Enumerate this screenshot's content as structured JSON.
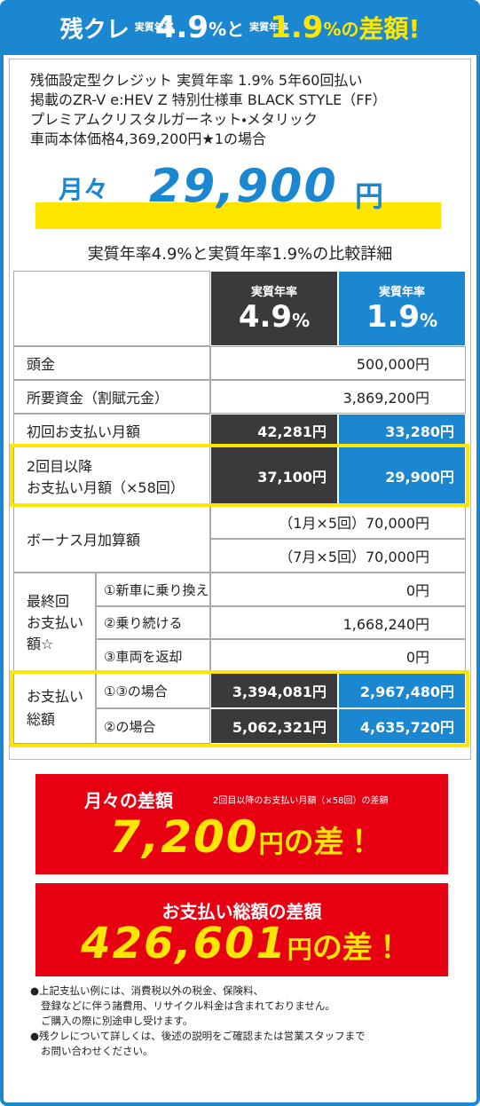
{
  "header": {
    "brand": "残クレ",
    "rate_label": "実質年率",
    "rate_a": "4.9",
    "rate_a_suffix": "%と",
    "rate_b": "1.9",
    "rate_b_suffix": "%の",
    "tail": "差額!"
  },
  "intro": {
    "lines": [
      "残価設定型クレジット 実質年率 1.9% 5年60回払い",
      "掲載のZR-V e:HEV Z 特別仕様車 BLACK STYLE（FF）",
      "プレミアムクリスタルガーネット・メタリック",
      "車両本体価格4,369,200円★1の場合"
    ]
  },
  "monthly": {
    "label": "月々",
    "amount": "29,900",
    "unit": "円"
  },
  "comparison": {
    "title": "実質年率4.9%と実質年率1.9%の比較詳細"
  },
  "table": {
    "columns": [
      {
        "label": "実質年率",
        "rate": "4.9",
        "unit": "%"
      },
      {
        "label": "実質年率",
        "rate": "1.9",
        "unit": "%"
      }
    ],
    "down_payment": {
      "label": "頭金",
      "value": "500,000円"
    },
    "required_funds": {
      "label": "所要資金（割賦元金）",
      "value": "3,869,200円"
    },
    "first_payment": {
      "label": "初回お支払い月額",
      "values": [
        "42,281円",
        "33,280円"
      ]
    },
    "monthly_payment": {
      "label": [
        "2回目以降",
        "お支払い月額（×58回）"
      ],
      "values": [
        "37,100円",
        "29,900円"
      ]
    },
    "bonus": {
      "label": "ボーナス月加算額",
      "values": [
        "（1月×5回）70,000円",
        "（7月×5回）70,000円"
      ]
    },
    "final": {
      "label": [
        "最終回",
        "お支払い",
        "額☆"
      ],
      "options": [
        {
          "label": "①新車に乗り換え",
          "value": "0円"
        },
        {
          "label": "②乗り続ける",
          "value": "1,668,240円"
        },
        {
          "label": "③車両を返却",
          "value": "0円"
        }
      ]
    },
    "total": {
      "label": [
        "お支払い",
        "総額"
      ],
      "options": [
        {
          "label": "①③の場合",
          "values": [
            "3,394,081円",
            "2,967,480円"
          ]
        },
        {
          "label": "②の場合",
          "values": [
            "5,062,321円",
            "4,635,720円"
          ]
        }
      ]
    }
  },
  "differences": [
    {
      "title": "月々の差額",
      "note": "2回目以降のお支払い月額（×58回）の差額",
      "amount": "7,200",
      "unit": "円",
      "tail": "の差！"
    },
    {
      "title": "お支払い総額の差額",
      "amount": "426,601",
      "unit": "円",
      "tail": "の差！"
    }
  ],
  "notes": [
    [
      "●上記支払い例には、消費税以外の税金、保険料、",
      "登録などに伴う諸費用、リサイクル料金は含まれておりません。",
      "ご購入の際に別途申し受けます。"
    ],
    [
      "●残クレについて詳しくは、後述の説明をご確認または営業スタッフまで",
      "お問い合わせください。"
    ]
  ]
}
